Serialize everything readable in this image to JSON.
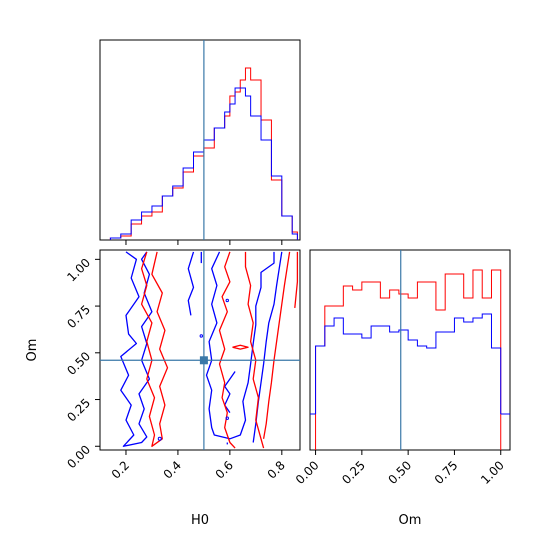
{
  "chart_data": [
    {
      "type": "histogram",
      "panel": "H0 marginal",
      "xlim": [
        0.1,
        0.87
      ],
      "truth": 0.5,
      "series": [
        {
          "name": "",
          "color": "#ff0000",
          "bin_edges": [
            0.14,
            0.18,
            0.22,
            0.26,
            0.3,
            0.34,
            0.38,
            0.42,
            0.46,
            0.5,
            0.54,
            0.58,
            0.6,
            0.62,
            0.64,
            0.66,
            0.68,
            0.72,
            0.76,
            0.8,
            0.84,
            0.86
          ],
          "values": [
            0.01,
            0.02,
            0.08,
            0.12,
            0.14,
            0.22,
            0.26,
            0.34,
            0.42,
            0.46,
            0.56,
            0.62,
            0.72,
            0.74,
            0.8,
            0.86,
            0.8,
            0.6,
            0.3,
            0.12,
            0.04
          ]
        },
        {
          "name": "",
          "color": "#0000ff",
          "bin_edges": [
            0.14,
            0.18,
            0.22,
            0.26,
            0.3,
            0.34,
            0.38,
            0.42,
            0.46,
            0.5,
            0.54,
            0.58,
            0.6,
            0.62,
            0.64,
            0.66,
            0.68,
            0.72,
            0.76,
            0.8,
            0.84,
            0.86
          ],
          "values": [
            0.01,
            0.03,
            0.1,
            0.14,
            0.17,
            0.22,
            0.27,
            0.36,
            0.44,
            0.5,
            0.56,
            0.64,
            0.68,
            0.76,
            0.76,
            0.72,
            0.62,
            0.5,
            0.32,
            0.12,
            0.03
          ]
        }
      ]
    },
    {
      "type": "contour",
      "panel": "H0 vs Om",
      "xlabel": "H0",
      "ylabel": "Om",
      "xlim": [
        0.1,
        0.87
      ],
      "ylim": [
        -0.02,
        1.05
      ],
      "xticks": [
        "0.2",
        "0.4",
        "0.6",
        "0.8"
      ],
      "yticks": [
        "0.00",
        "0.25",
        "0.50",
        "0.75",
        "1.00"
      ],
      "xtick_values": [
        0.2,
        0.4,
        0.6,
        0.8
      ],
      "ytick_values": [
        0.0,
        0.25,
        0.5,
        0.75,
        1.0
      ],
      "truth": [
        0.5,
        0.46
      ],
      "series": [
        {
          "name": "",
          "color": "#0000ff",
          "contours": [
            [
              [
                0.2,
                1.04
              ],
              [
                0.24,
                1.0
              ],
              [
                0.22,
                0.9
              ],
              [
                0.25,
                0.8
              ],
              [
                0.2,
                0.7
              ],
              [
                0.21,
                0.6
              ],
              [
                0.24,
                0.55
              ],
              [
                0.18,
                0.48
              ],
              [
                0.21,
                0.38
              ],
              [
                0.18,
                0.3
              ],
              [
                0.22,
                0.22
              ],
              [
                0.2,
                0.14
              ],
              [
                0.23,
                0.06
              ],
              [
                0.19,
                0.0
              ],
              [
                0.26,
                0.02
              ],
              [
                0.28,
                0.05
              ],
              [
                0.25,
                0.12
              ],
              [
                0.27,
                0.2
              ],
              [
                0.25,
                0.28
              ],
              [
                0.29,
                0.36
              ],
              [
                0.26,
                0.46
              ],
              [
                0.28,
                0.55
              ],
              [
                0.26,
                0.64
              ],
              [
                0.3,
                0.72
              ],
              [
                0.27,
                0.82
              ],
              [
                0.29,
                0.92
              ],
              [
                0.26,
                1.0
              ],
              [
                0.28,
                1.04
              ]
            ],
            [
              [
                0.46,
                1.04
              ],
              [
                0.44,
                0.95
              ],
              [
                0.46,
                0.85
              ],
              [
                0.44,
                0.78
              ],
              [
                0.45,
                0.7
              ]
            ],
            [
              [
                0.49,
                1.04
              ],
              [
                0.49,
                0.98
              ]
            ],
            [
              [
                0.56,
                1.04
              ],
              [
                0.53,
                0.95
              ],
              [
                0.55,
                0.86
              ],
              [
                0.53,
                0.76
              ],
              [
                0.55,
                0.66
              ],
              [
                0.52,
                0.56
              ],
              [
                0.53,
                0.46
              ],
              [
                0.51,
                0.38
              ],
              [
                0.53,
                0.3
              ],
              [
                0.52,
                0.2
              ],
              [
                0.53,
                0.1
              ],
              [
                0.54,
                0.06
              ],
              [
                0.6,
                0.04
              ],
              [
                0.64,
                0.06
              ],
              [
                0.66,
                0.14
              ],
              [
                0.65,
                0.24
              ],
              [
                0.67,
                0.34
              ],
              [
                0.68,
                0.44
              ],
              [
                0.69,
                0.55
              ],
              [
                0.7,
                0.65
              ],
              [
                0.7,
                0.75
              ],
              [
                0.72,
                0.85
              ],
              [
                0.72,
                0.93
              ],
              [
                0.77,
                0.98
              ],
              [
                0.77,
                1.04
              ]
            ],
            [
              [
                0.8,
                1.04
              ],
              [
                0.79,
                0.95
              ],
              [
                0.78,
                0.86
              ],
              [
                0.77,
                0.76
              ],
              [
                0.75,
                0.66
              ],
              [
                0.74,
                0.56
              ],
              [
                0.73,
                0.44
              ],
              [
                0.72,
                0.34
              ],
              [
                0.71,
                0.24
              ],
              [
                0.7,
                0.12
              ],
              [
                0.69,
                0.02
              ]
            ],
            [
              [
                0.62,
                0.4
              ],
              [
                0.6,
                0.36
              ],
              [
                0.58,
                0.32
              ],
              [
                0.6,
                0.28
              ],
              [
                0.58,
                0.22
              ],
              [
                0.6,
                0.18
              ]
            ],
            [
              [
                0.59,
                0.02
              ],
              [
                0.59,
                0.01
              ]
            ]
          ]
        },
        {
          "name": "",
          "color": "#ff0000",
          "contours": [
            [
              [
                0.28,
                1.04
              ],
              [
                0.26,
                0.95
              ],
              [
                0.28,
                0.86
              ],
              [
                0.26,
                0.76
              ],
              [
                0.3,
                0.66
              ],
              [
                0.28,
                0.56
              ],
              [
                0.3,
                0.46
              ],
              [
                0.28,
                0.36
              ],
              [
                0.31,
                0.26
              ],
              [
                0.29,
                0.16
              ],
              [
                0.31,
                0.06
              ],
              [
                0.3,
                0.0
              ],
              [
                0.34,
                0.04
              ],
              [
                0.33,
                0.12
              ],
              [
                0.35,
                0.22
              ],
              [
                0.33,
                0.32
              ],
              [
                0.36,
                0.42
              ],
              [
                0.33,
                0.52
              ],
              [
                0.35,
                0.62
              ],
              [
                0.32,
                0.72
              ],
              [
                0.34,
                0.82
              ],
              [
                0.3,
                0.92
              ],
              [
                0.32,
                1.04
              ]
            ],
            [
              [
                0.6,
                1.04
              ],
              [
                0.58,
                0.96
              ],
              [
                0.6,
                0.88
              ],
              [
                0.57,
                0.8
              ],
              [
                0.59,
                0.72
              ],
              [
                0.56,
                0.62
              ],
              [
                0.58,
                0.52
              ],
              [
                0.56,
                0.44
              ],
              [
                0.58,
                0.34
              ],
              [
                0.57,
                0.26
              ],
              [
                0.59,
                0.18
              ],
              [
                0.58,
                0.1
              ],
              [
                0.6,
                0.02
              ],
              [
                0.62,
                -0.01
              ]
            ],
            [
              [
                0.66,
                1.04
              ],
              [
                0.66,
                0.96
              ],
              [
                0.68,
                0.86
              ],
              [
                0.67,
                0.76
              ],
              [
                0.69,
                0.66
              ],
              [
                0.68,
                0.56
              ],
              [
                0.7,
                0.46
              ],
              [
                0.69,
                0.36
              ],
              [
                0.71,
                0.26
              ],
              [
                0.7,
                0.14
              ],
              [
                0.72,
                0.04
              ],
              [
                0.73,
                -0.01
              ]
            ],
            [
              [
                0.83,
                1.04
              ],
              [
                0.82,
                0.95
              ],
              [
                0.81,
                0.86
              ],
              [
                0.8,
                0.76
              ],
              [
                0.79,
                0.66
              ],
              [
                0.78,
                0.56
              ],
              [
                0.77,
                0.46
              ],
              [
                0.76,
                0.34
              ],
              [
                0.75,
                0.24
              ],
              [
                0.74,
                0.12
              ],
              [
                0.73,
                0.04
              ]
            ],
            [
              [
                0.86,
                1.04
              ],
              [
                0.86,
                0.88
              ],
              [
                0.85,
                0.74
              ]
            ],
            [
              [
                0.61,
                0.53
              ],
              [
                0.64,
                0.54
              ],
              [
                0.67,
                0.53
              ],
              [
                0.64,
                0.52
              ],
              [
                0.61,
                0.53
              ]
            ]
          ]
        }
      ]
    },
    {
      "type": "histogram",
      "panel": "Om marginal",
      "xlabel": "Om",
      "xlim": [
        -0.03,
        1.05
      ],
      "xticks": [
        "0.00",
        "0.25",
        "0.50",
        "0.75",
        "1.00"
      ],
      "xtick_values": [
        0.0,
        0.25,
        0.5,
        0.75,
        1.0
      ],
      "truth": 0.46,
      "series": [
        {
          "name": "",
          "color": "#ff0000",
          "bin_edges": [
            0.0,
            0.05,
            0.1,
            0.15,
            0.2,
            0.25,
            0.3,
            0.35,
            0.4,
            0.45,
            0.5,
            0.55,
            0.6,
            0.65,
            0.7,
            0.75,
            0.8,
            0.85,
            0.9,
            0.95,
            1.0
          ],
          "values": [
            0.52,
            0.72,
            0.72,
            0.82,
            0.8,
            0.84,
            0.84,
            0.76,
            0.8,
            0.78,
            0.76,
            0.84,
            0.84,
            0.7,
            0.88,
            0.88,
            0.76,
            0.9,
            0.76,
            0.9
          ]
        },
        {
          "name": "",
          "color": "#0000ff",
          "bin_edges": [
            0.0,
            0.05,
            0.1,
            0.15,
            0.2,
            0.25,
            0.3,
            0.35,
            0.4,
            0.45,
            0.5,
            0.55,
            0.6,
            0.65,
            0.7,
            0.75,
            0.8,
            0.85,
            0.9,
            0.95,
            1.0
          ],
          "values": [
            0.52,
            0.62,
            0.66,
            0.58,
            0.58,
            0.56,
            0.62,
            0.62,
            0.59,
            0.6,
            0.55,
            0.52,
            0.51,
            0.59,
            0.59,
            0.66,
            0.64,
            0.66,
            0.68,
            0.51
          ]
        }
      ],
      "dropoff_value": 0.18
    }
  ],
  "colors": {
    "red": "#ff0000",
    "blue": "#0000ff",
    "truth": "#3a78a8"
  }
}
